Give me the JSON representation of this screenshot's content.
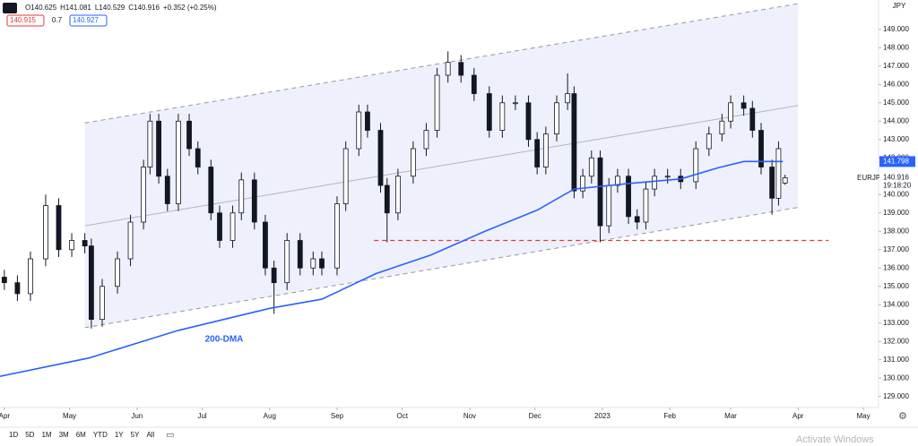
{
  "chart_data": {
    "type": "candlestick",
    "symbol": "EURJPY",
    "currency": "JPY",
    "ohlc_text": [
      "O140.625",
      "H141.081",
      "L140.529",
      "C140.916",
      "+0.352 (+0.25%)"
    ],
    "indicator_pills": [
      {
        "label": "140.915",
        "color": "#e53935"
      },
      {
        "label": "0.7",
        "color": null
      },
      {
        "label": "140.927",
        "color": "#2962ff"
      }
    ],
    "x": [
      0,
      6,
      12,
      19,
      25,
      31,
      37,
      40,
      45,
      52,
      58,
      64,
      67,
      71,
      75,
      80,
      85,
      89,
      95,
      99,
      105,
      109,
      115,
      120,
      124,
      130,
      136,
      142,
      146,
      153,
      157,
      163,
      167,
      173,
      176,
      181,
      188,
      194,
      199,
      204,
      210,
      216,
      223,
      229,
      235,
      241,
      245,
      249,
      254,
      259,
      262,
      266,
      270,
      274,
      278,
      282,
      287,
      291,
      295,
      299,
      305,
      311,
      318,
      324,
      330,
      334,
      340,
      344,
      348,
      353,
      356,
      359
    ],
    "open": [
      135.5,
      135.2,
      134.6,
      136.5,
      139.4,
      137,
      137.5,
      137.2,
      133.2,
      135,
      136.5,
      138.5,
      141.5,
      144,
      141,
      139.5,
      144,
      142.5,
      141.5,
      139,
      137.5,
      139,
      140.8,
      138.5,
      136,
      135.2,
      137.5,
      136,
      136.5,
      136,
      139.5,
      142.5,
      144.5,
      143.5,
      140.5,
      139,
      141,
      142.5,
      143.5,
      146.5,
      147.2,
      146.5,
      145.5,
      143.5,
      145,
      145,
      143,
      141.5,
      143.3,
      145,
      145.5,
      140.2,
      141,
      142,
      138.3,
      140.5,
      141,
      138.8,
      138.5,
      140.3,
      141,
      141,
      140.7,
      142.5,
      143.3,
      144,
      145,
      144.7,
      143.5,
      141.5,
      139.8,
      140.625
    ],
    "high": [
      135.9,
      135.6,
      136.9,
      140.0,
      139.8,
      137.9,
      137.9,
      137.6,
      135.4,
      136.9,
      138.9,
      141.9,
      144.4,
      144.4,
      141.4,
      144.4,
      144.4,
      142.9,
      141.9,
      139.4,
      139.4,
      141.2,
      141.2,
      138.9,
      136.4,
      137.9,
      137.9,
      136.9,
      136.9,
      139.9,
      142.9,
      144.9,
      144.9,
      143.9,
      140.9,
      141.4,
      142.9,
      143.9,
      146.9,
      147.8,
      147.6,
      146.9,
      145.9,
      145.4,
      145.4,
      145.4,
      143.4,
      143.7,
      145.4,
      146.6,
      145.9,
      141.4,
      142.4,
      142.4,
      140.9,
      141.4,
      141.4,
      139.2,
      140.7,
      141.4,
      141.4,
      141.4,
      142.9,
      143.7,
      144.4,
      145.4,
      145.4,
      145.1,
      143.9,
      141.9,
      142.9,
      141.081
    ],
    "low": [
      134.8,
      134.2,
      134.2,
      136.1,
      136.6,
      136.6,
      136.8,
      132.7,
      132.8,
      134.6,
      136.1,
      138.1,
      141.1,
      140.6,
      139.1,
      139.1,
      142.1,
      141.1,
      138.6,
      137.1,
      137.1,
      138.6,
      138.1,
      135.6,
      133.5,
      134.8,
      135.6,
      135.6,
      135.6,
      135.6,
      139.1,
      142.1,
      143.1,
      140.1,
      137.4,
      138.6,
      140.6,
      142.1,
      143.1,
      146.1,
      146.1,
      145.1,
      143.1,
      143.1,
      144.6,
      142.6,
      141.1,
      141.1,
      142.9,
      144.6,
      139.8,
      139.8,
      140.6,
      137.4,
      137.9,
      140.1,
      138.4,
      138.1,
      138.1,
      139.9,
      140.6,
      140.3,
      140.3,
      142.1,
      142.9,
      143.6,
      144.3,
      143.1,
      141.1,
      138.9,
      139.4,
      140.529
    ],
    "close": [
      135.2,
      134.6,
      136.5,
      139.4,
      137,
      137.5,
      137.2,
      133.2,
      135,
      136.5,
      138.5,
      141.5,
      144,
      141,
      139.5,
      144,
      142.5,
      141.5,
      139,
      137.5,
      139,
      140.8,
      138.5,
      136,
      135.2,
      137.5,
      136,
      136.5,
      136,
      139.5,
      142.5,
      144.5,
      143.5,
      140.5,
      139,
      141,
      142.5,
      143.5,
      146.5,
      147.2,
      146.5,
      145.5,
      143.5,
      145,
      145,
      143,
      141.5,
      143.3,
      145,
      145.5,
      140.2,
      141,
      142,
      138.3,
      140.5,
      141,
      138.8,
      138.5,
      140.3,
      141,
      141,
      140.7,
      142.5,
      143.3,
      144,
      145,
      144.7,
      143.5,
      141.5,
      139.8,
      142.5,
      140.916
    ],
    "up_color": "#ffffff",
    "down_color": "#131722",
    "xlim": [
      -2,
      402
    ],
    "ylim": [
      150.6,
      128.4
    ],
    "xticks": [
      {
        "value": 0,
        "label": "Apr"
      },
      {
        "value": 30,
        "label": "May"
      },
      {
        "value": 61,
        "label": "Jun"
      },
      {
        "value": 91,
        "label": "Jul"
      },
      {
        "value": 122,
        "label": "Aug"
      },
      {
        "value": 153,
        "label": "Sep"
      },
      {
        "value": 183,
        "label": "Oct"
      },
      {
        "value": 214,
        "label": "Nov"
      },
      {
        "value": 244,
        "label": "Dec"
      },
      {
        "value": 275,
        "label": "2023"
      },
      {
        "value": 306,
        "label": "Feb"
      },
      {
        "value": 334,
        "label": "Mar"
      },
      {
        "value": 365,
        "label": "Apr"
      },
      {
        "value": 395,
        "label": "May"
      }
    ],
    "yticks": [
      {
        "value": 129,
        "label": "129.000"
      },
      {
        "value": 130,
        "label": "130.000"
      },
      {
        "value": 131,
        "label": "131.000"
      },
      {
        "value": 132,
        "label": "132.000"
      },
      {
        "value": 133,
        "label": "133.000"
      },
      {
        "value": 134,
        "label": "134.000"
      },
      {
        "value": 135,
        "label": "135.000"
      },
      {
        "value": 136,
        "label": "136.000"
      },
      {
        "value": 137,
        "label": "137.000"
      },
      {
        "value": 138,
        "label": "138.000"
      },
      {
        "value": 139,
        "label": "139.000"
      },
      {
        "value": 140,
        "label": "140.000"
      },
      {
        "value": 141,
        "label": "141.000"
      },
      {
        "value": 142,
        "label": "142.000"
      },
      {
        "value": 143,
        "label": "143.000"
      },
      {
        "value": 144,
        "label": "144.000"
      },
      {
        "value": 145,
        "label": "145.000"
      },
      {
        "value": 146,
        "label": "146.000"
      },
      {
        "value": 147,
        "label": "147.000"
      },
      {
        "value": 148,
        "label": "148.000"
      },
      {
        "value": 149,
        "label": "149.000"
      }
    ],
    "grid": false,
    "channel": {
      "fill": "#eef1fb",
      "upper": {
        "x": [
          37,
          365
        ],
        "y": [
          143.9,
          150.4
        ],
        "color": "#9598a1",
        "style": "dashed"
      },
      "lower": {
        "x": [
          37,
          365
        ],
        "y": [
          132.75,
          139.3
        ],
        "color": "#9598a1",
        "style": "dashed"
      },
      "middle": {
        "x": [
          37,
          365
        ],
        "y": [
          138.3,
          144.85
        ],
        "color": "#b2b5be",
        "style": "solid"
      }
    },
    "support": {
      "x": [
        170,
        379
      ],
      "y": [
        137.5,
        137.5
      ],
      "color": "#e53935",
      "style": "dashed"
    },
    "dma": {
      "name": "200-DMA",
      "color": "#2962ff",
      "x": [
        -2,
        39,
        80,
        122,
        146,
        171,
        196,
        221,
        245,
        262,
        287,
        311,
        328,
        340,
        358
      ],
      "y": [
        130.1,
        131.1,
        132.6,
        133.8,
        134.3,
        135.7,
        136.7,
        138.0,
        139.15,
        140.3,
        140.6,
        140.85,
        141.45,
        141.8,
        141.8
      ]
    },
    "price_tags": [
      {
        "value": 141.798,
        "label": "141.798",
        "color": "#2962ff"
      },
      {
        "value": 140.916,
        "label": "140.916",
        "color": null
      }
    ],
    "countdown": "19:18:20",
    "ranges": [
      "1D",
      "5D",
      "1M",
      "3M",
      "6M",
      "YTD",
      "1Y",
      "5Y",
      "All"
    ],
    "watermark": "Activate Windows"
  }
}
